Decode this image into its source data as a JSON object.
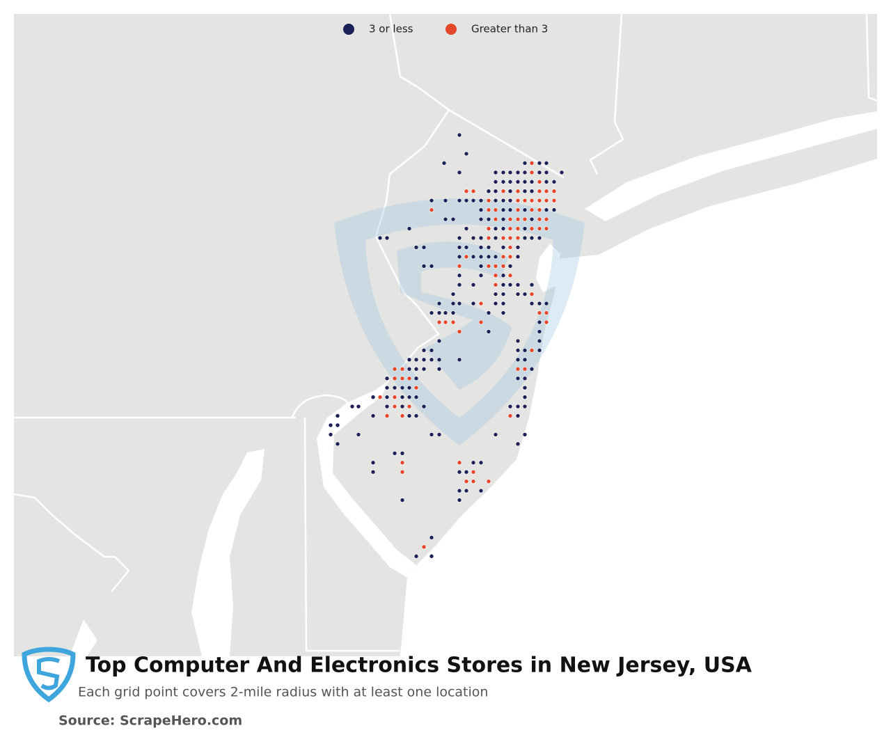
{
  "legend": {
    "items": [
      {
        "name": "3 or less",
        "color": "#1b2157"
      },
      {
        "name": "Greater than 3",
        "color": "#e4472a"
      }
    ]
  },
  "title": "Top Computer And Electronics Stores in New Jersey, USA",
  "subtitle": "Each grid point covers 2-mile radius with at least one location",
  "source": "Source: ScrapeHero.com"
}
